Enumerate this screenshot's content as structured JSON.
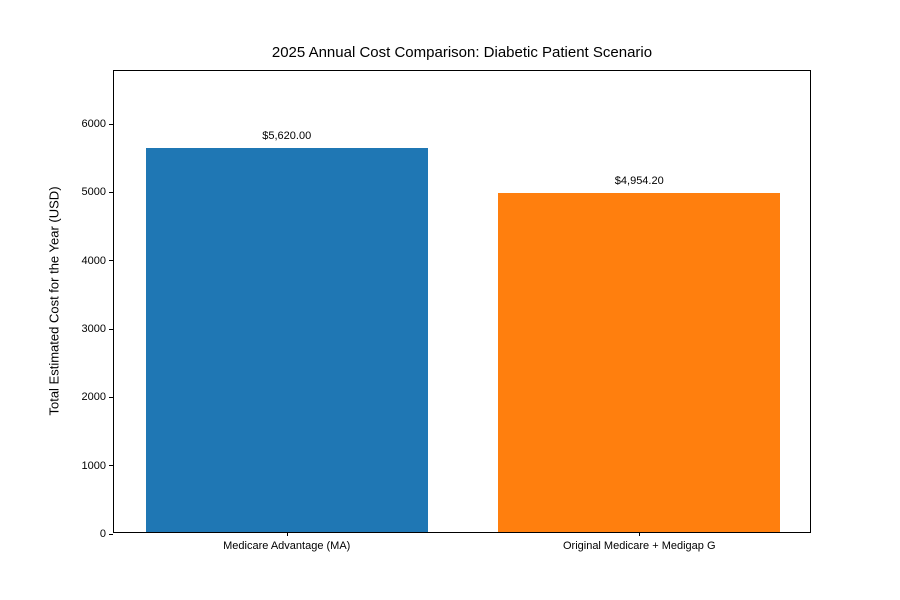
{
  "chart_data": {
    "type": "bar",
    "title": "2025 Annual Cost Comparison: Diabetic Patient Scenario",
    "categories": [
      "Medicare Advantage (MA)",
      "Original Medicare + Medigap G"
    ],
    "values": [
      5620.0,
      4954.2
    ],
    "value_labels": [
      "$5,620.00",
      "$4,954.20"
    ],
    "bar_colors": [
      "#1f77b4",
      "#ff7f0e"
    ],
    "xlabel": "",
    "ylabel": "Total Estimated Cost for the Year (USD)",
    "ylim": [
      0,
      6776
    ],
    "yticks": [
      0,
      1000,
      2000,
      3000,
      4000,
      5000,
      6000
    ],
    "grid": false,
    "legend_position": "none",
    "background_color": "#ffffff",
    "axis_color": "#000000",
    "text_color": "#000000"
  }
}
